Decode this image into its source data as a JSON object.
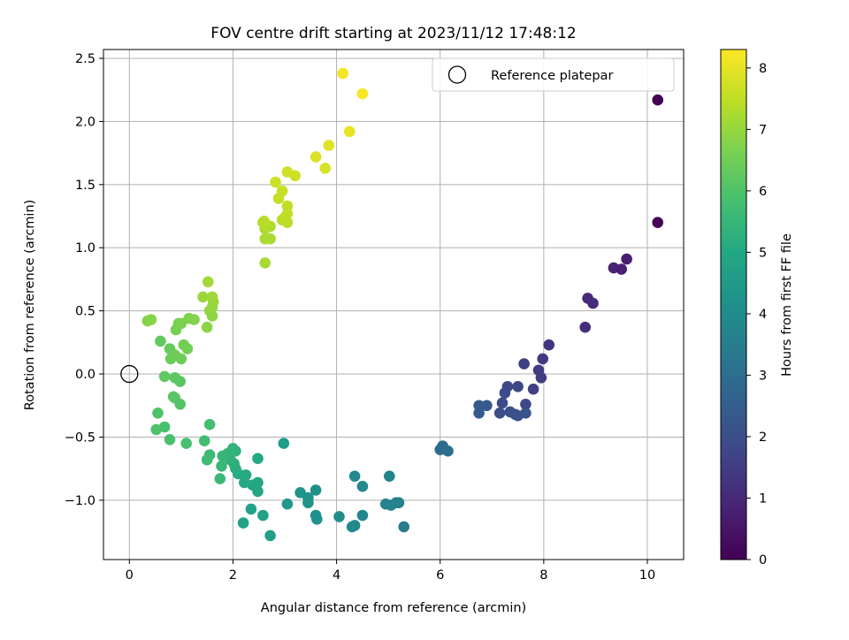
{
  "chart_data": {
    "type": "scatter",
    "title": "FOV centre drift starting at 2023/11/12 17:48:12",
    "xlabel": "Angular distance from reference (arcmin)",
    "ylabel": "Rotation from reference (arcmin)",
    "xlim": [
      -0.5,
      10.7
    ],
    "ylim": [
      -1.47,
      2.57
    ],
    "xticks": [
      0,
      2,
      4,
      6,
      8,
      10
    ],
    "yticks": [
      -1.0,
      -0.5,
      0.0,
      0.5,
      1.0,
      1.5,
      2.0,
      2.5
    ],
    "xtick_labels": [
      "0",
      "2",
      "4",
      "6",
      "8",
      "10"
    ],
    "ytick_labels": [
      "−1.0",
      "−0.5",
      "0.0",
      "0.5",
      "1.0",
      "1.5",
      "2.0",
      "2.5"
    ],
    "grid": true,
    "legend": {
      "position": "top-right",
      "entries": [
        "Reference platepar"
      ]
    },
    "reference_point": {
      "x": 0,
      "y": 0
    },
    "colorbar": {
      "label": "Hours from first FF file",
      "range": [
        0,
        8.3
      ],
      "ticks": [
        0,
        1,
        2,
        3,
        4,
        5,
        6,
        7,
        8
      ],
      "tick_labels": [
        "0",
        "1",
        "2",
        "3",
        "4",
        "5",
        "6",
        "7",
        "8"
      ],
      "colormap": "viridis"
    },
    "points": [
      [
        10.2,
        2.17,
        0.0
      ],
      [
        10.2,
        1.2,
        0.1
      ],
      [
        9.6,
        0.91,
        0.7
      ],
      [
        9.35,
        0.84,
        0.8
      ],
      [
        9.5,
        0.83,
        0.75
      ],
      [
        8.85,
        0.6,
        1.0
      ],
      [
        8.95,
        0.56,
        1.05
      ],
      [
        8.8,
        0.37,
        1.1
      ],
      [
        8.1,
        0.23,
        1.3
      ],
      [
        7.98,
        0.12,
        1.4
      ],
      [
        7.9,
        0.03,
        1.45
      ],
      [
        7.95,
        -0.03,
        1.5
      ],
      [
        7.62,
        0.08,
        1.55
      ],
      [
        7.8,
        -0.12,
        1.6
      ],
      [
        7.3,
        -0.1,
        1.75
      ],
      [
        7.5,
        -0.1,
        1.8
      ],
      [
        7.25,
        -0.15,
        1.9
      ],
      [
        7.65,
        -0.24,
        1.85
      ],
      [
        7.2,
        -0.23,
        1.95
      ],
      [
        7.15,
        -0.31,
        2.0
      ],
      [
        7.35,
        -0.3,
        2.05
      ],
      [
        7.45,
        -0.32,
        2.1
      ],
      [
        7.5,
        -0.33,
        2.1
      ],
      [
        7.65,
        -0.31,
        2.2
      ],
      [
        6.9,
        -0.25,
        2.3
      ],
      [
        6.75,
        -0.25,
        2.35
      ],
      [
        6.75,
        -0.31,
        2.4
      ],
      [
        6.05,
        -0.57,
        2.9
      ],
      [
        6.0,
        -0.6,
        2.95
      ],
      [
        6.15,
        -0.61,
        3.0
      ],
      [
        5.3,
        -1.21,
        3.5
      ],
      [
        5.2,
        -1.02,
        3.6
      ],
      [
        5.15,
        -1.02,
        3.6
      ],
      [
        5.05,
        -1.04,
        3.7
      ],
      [
        4.95,
        -1.03,
        3.7
      ],
      [
        5.02,
        -0.81,
        3.75
      ],
      [
        4.5,
        -1.12,
        3.8
      ],
      [
        4.35,
        -1.2,
        3.85
      ],
      [
        4.3,
        -1.21,
        3.9
      ],
      [
        4.5,
        -0.89,
        3.9
      ],
      [
        4.35,
        -0.81,
        3.95
      ],
      [
        4.05,
        -1.13,
        4.0
      ],
      [
        3.6,
        -0.92,
        4.15
      ],
      [
        3.6,
        -1.12,
        4.2
      ],
      [
        3.62,
        -1.15,
        4.2
      ],
      [
        3.45,
        -0.98,
        4.25
      ],
      [
        3.45,
        -1.02,
        4.25
      ],
      [
        3.3,
        -0.94,
        4.3
      ],
      [
        3.05,
        -1.03,
        4.4
      ],
      [
        2.98,
        -0.55,
        4.6
      ],
      [
        2.72,
        -1.28,
        4.7
      ],
      [
        2.58,
        -1.12,
        4.75
      ],
      [
        2.35,
        -1.07,
        4.8
      ],
      [
        2.2,
        -1.18,
        4.85
      ],
      [
        2.48,
        -0.93,
        4.9
      ],
      [
        2.48,
        -0.86,
        4.95
      ],
      [
        2.38,
        -0.88,
        4.95
      ],
      [
        2.22,
        -0.86,
        5.0
      ],
      [
        2.48,
        -0.67,
        5.0
      ],
      [
        2.25,
        -0.8,
        5.1
      ],
      [
        2.1,
        -0.79,
        5.1
      ],
      [
        2.05,
        -0.75,
        5.2
      ],
      [
        2.02,
        -0.71,
        5.25
      ],
      [
        1.95,
        -0.68,
        5.3
      ],
      [
        2.05,
        -0.61,
        5.35
      ],
      [
        2.0,
        -0.59,
        5.4
      ],
      [
        1.9,
        -0.63,
        5.45
      ],
      [
        1.8,
        -0.65,
        5.5
      ],
      [
        1.78,
        -0.73,
        5.55
      ],
      [
        1.75,
        -0.83,
        5.6
      ],
      [
        1.55,
        -0.64,
        5.65
      ],
      [
        1.5,
        -0.68,
        5.7
      ],
      [
        1.45,
        -0.53,
        5.75
      ],
      [
        1.55,
        -0.4,
        5.8
      ],
      [
        1.1,
        -0.55,
        5.85
      ],
      [
        0.78,
        -0.52,
        5.9
      ],
      [
        0.68,
        -0.42,
        5.9
      ],
      [
        0.52,
        -0.44,
        5.95
      ],
      [
        0.55,
        -0.31,
        6.0
      ],
      [
        0.98,
        -0.24,
        6.05
      ],
      [
        0.88,
        -0.19,
        6.1
      ],
      [
        0.85,
        -0.18,
        6.15
      ],
      [
        0.98,
        -0.06,
        6.15
      ],
      [
        0.88,
        -0.03,
        6.2
      ],
      [
        0.68,
        -0.02,
        6.25
      ],
      [
        0.6,
        0.26,
        6.3
      ],
      [
        0.78,
        0.2,
        6.35
      ],
      [
        0.8,
        0.12,
        6.4
      ],
      [
        0.88,
        0.15,
        6.45
      ],
      [
        1.0,
        0.12,
        6.45
      ],
      [
        1.05,
        0.23,
        6.5
      ],
      [
        1.12,
        0.2,
        6.55
      ],
      [
        0.9,
        0.35,
        6.6
      ],
      [
        0.95,
        0.4,
        6.6
      ],
      [
        1.0,
        0.4,
        6.65
      ],
      [
        1.15,
        0.44,
        6.7
      ],
      [
        1.25,
        0.43,
        6.75
      ],
      [
        0.35,
        0.42,
        6.8
      ],
      [
        0.42,
        0.43,
        6.8
      ],
      [
        1.5,
        0.37,
        6.85
      ],
      [
        1.6,
        0.46,
        6.9
      ],
      [
        1.55,
        0.5,
        6.95
      ],
      [
        1.6,
        0.53,
        7.0
      ],
      [
        1.62,
        0.57,
        7.0
      ],
      [
        1.42,
        0.61,
        7.05
      ],
      [
        1.6,
        0.61,
        7.1
      ],
      [
        1.52,
        0.73,
        7.15
      ],
      [
        2.62,
        0.88,
        7.2
      ],
      [
        2.62,
        1.07,
        7.25
      ],
      [
        2.72,
        1.07,
        7.25
      ],
      [
        2.62,
        1.15,
        7.3
      ],
      [
        2.72,
        1.17,
        7.3
      ],
      [
        2.65,
        1.18,
        7.35
      ],
      [
        2.58,
        1.2,
        7.35
      ],
      [
        2.6,
        1.21,
        7.4
      ],
      [
        2.95,
        1.22,
        7.4
      ],
      [
        3.05,
        1.2,
        7.45
      ],
      [
        3.0,
        1.24,
        7.45
      ],
      [
        3.05,
        1.27,
        7.5
      ],
      [
        3.05,
        1.33,
        7.5
      ],
      [
        2.88,
        1.39,
        7.55
      ],
      [
        2.95,
        1.45,
        7.6
      ],
      [
        2.82,
        1.52,
        7.65
      ],
      [
        3.05,
        1.6,
        7.7
      ],
      [
        3.2,
        1.57,
        7.7
      ],
      [
        3.78,
        1.63,
        7.8
      ],
      [
        3.6,
        1.72,
        7.85
      ],
      [
        3.85,
        1.81,
        7.9
      ],
      [
        4.25,
        1.92,
        8.0
      ],
      [
        4.12,
        2.38,
        8.2
      ],
      [
        4.5,
        2.22,
        8.25
      ]
    ]
  }
}
